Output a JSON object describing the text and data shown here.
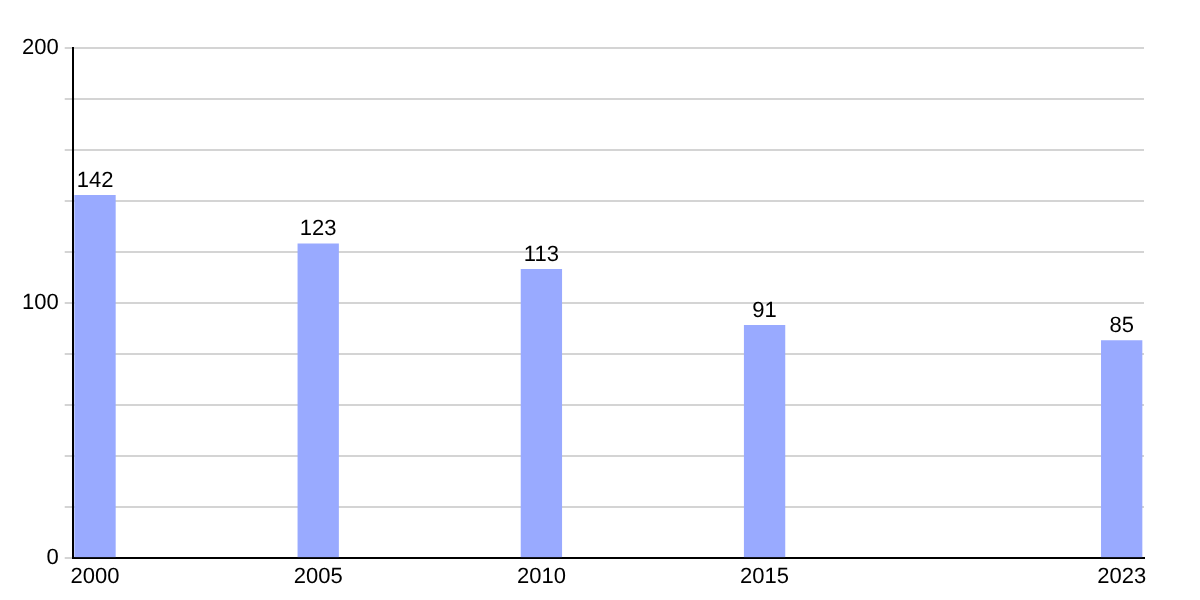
{
  "chart_data": {
    "type": "bar",
    "x": [
      2000,
      2005,
      2010,
      2015,
      2023
    ],
    "values": [
      142,
      123,
      113,
      91,
      85
    ],
    "color": "#99aaff",
    "xlim": [
      1999.5,
      2023.5
    ],
    "xticks": [
      2000,
      2005,
      2010,
      2015,
      2023
    ],
    "ylim": [
      0,
      200
    ],
    "yticks": [
      0,
      {
        "value": 20,
        "label": null
      },
      {
        "value": 40,
        "label": null
      },
      {
        "value": 60,
        "label": null
      },
      {
        "value": 80,
        "label": null
      },
      100,
      {
        "value": 120,
        "label": null
      },
      {
        "value": 140,
        "label": null
      },
      {
        "value": 160,
        "label": null
      },
      {
        "value": 180,
        "label": null
      },
      200
    ],
    "grid": "y",
    "data_labels": true,
    "legend": false
  }
}
